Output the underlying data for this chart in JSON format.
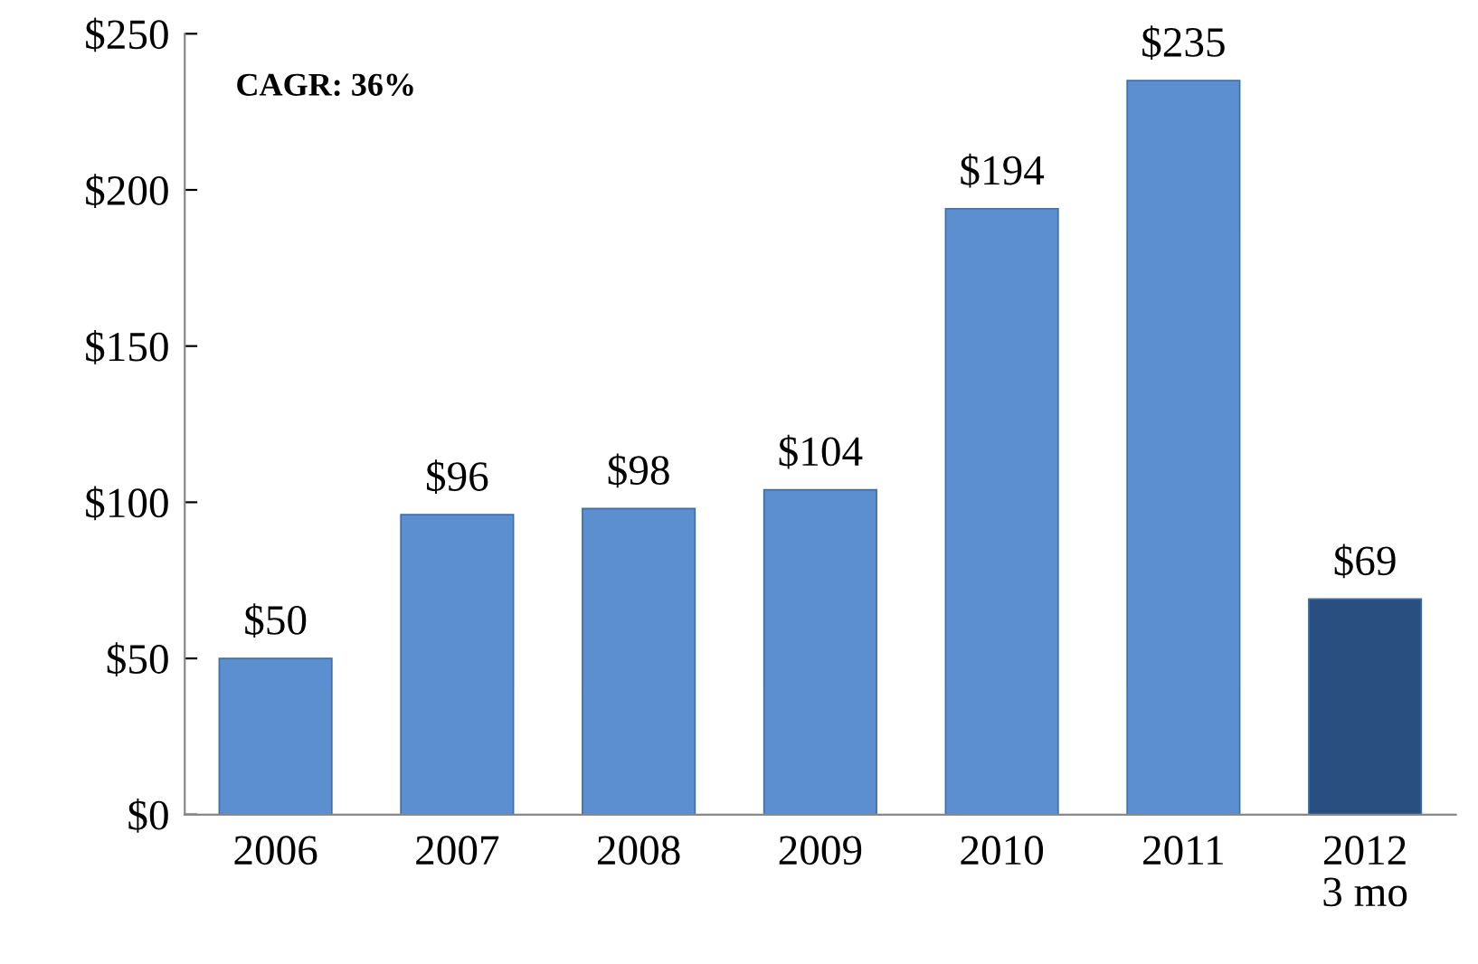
{
  "chart_data": {
    "type": "bar",
    "categories": [
      "2006",
      "2007",
      "2008",
      "2009",
      "2010",
      "2011",
      "2012\n3 mo"
    ],
    "values": [
      50,
      96,
      98,
      104,
      194,
      235,
      69
    ],
    "colors": [
      "#5b8fd0",
      "#5b8fd0",
      "#5b8fd0",
      "#5b8fd0",
      "#5b8fd0",
      "#5b8fd0",
      "#284f80"
    ],
    "value_labels": [
      "$50",
      "$96",
      "$98",
      "$104",
      "$194",
      "$235",
      "$69"
    ],
    "ylim": [
      0,
      250
    ],
    "yticks": [
      {
        "value": 0,
        "label": "$0"
      },
      {
        "value": 50,
        "label": "$50"
      },
      {
        "value": 100,
        "label": "$100"
      },
      {
        "value": 150,
        "label": "$150"
      },
      {
        "value": 200,
        "label": "$200"
      },
      {
        "value": 250,
        "label": "$250"
      }
    ],
    "annotations": [
      "CAGR: 36%"
    ],
    "grid": false,
    "legend": false
  }
}
